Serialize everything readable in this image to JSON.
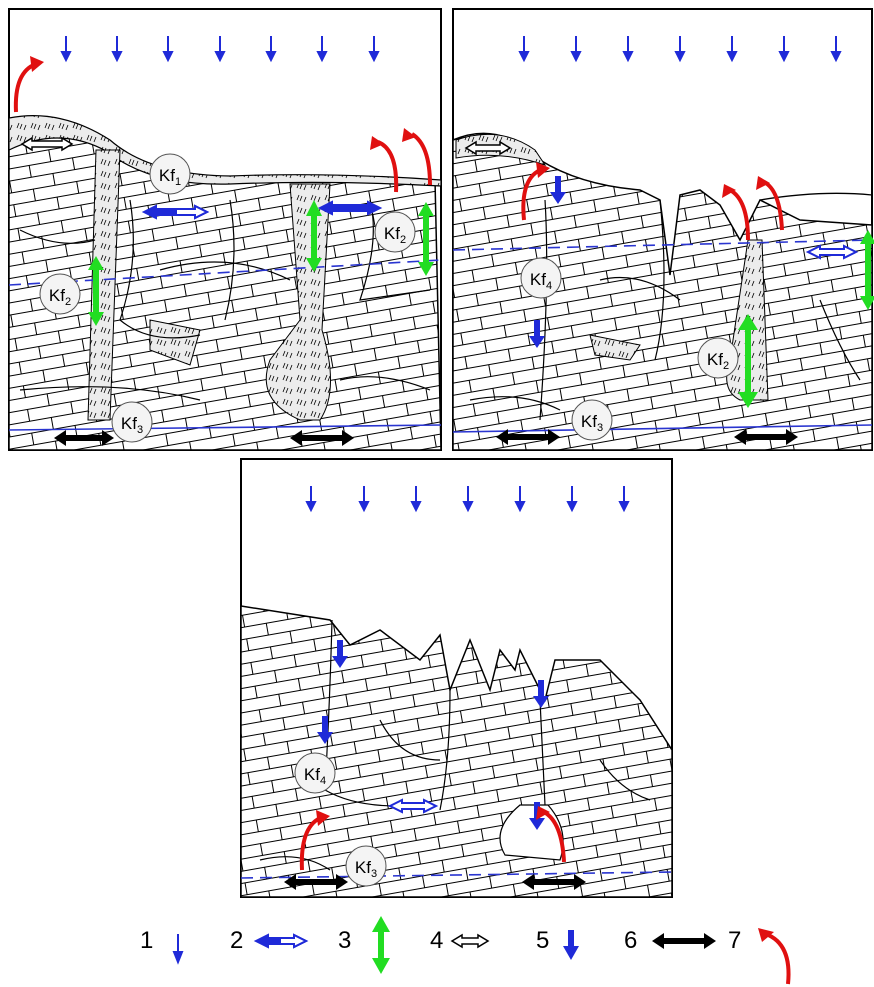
{
  "panels": {
    "top_left": {
      "labels": [
        {
          "base": "Kf",
          "sub": "1"
        },
        {
          "base": "Kf",
          "sub": "2"
        },
        {
          "base": "Kf",
          "sub": "2"
        },
        {
          "base": "Kf",
          "sub": "3"
        }
      ]
    },
    "top_right": {
      "labels": [
        {
          "base": "Kf",
          "sub": "4"
        },
        {
          "base": "Kf",
          "sub": "2"
        },
        {
          "base": "Kf",
          "sub": "3"
        }
      ]
    },
    "bottom": {
      "labels": [
        {
          "base": "Kf",
          "sub": "4"
        },
        {
          "base": "Kf",
          "sub": "3"
        }
      ]
    }
  },
  "legend": {
    "items": [
      {
        "num": "1",
        "symbol": "small-blue-down-arrow"
      },
      {
        "num": "2",
        "symbol": "blue-hollow-right-arrow"
      },
      {
        "num": "3",
        "symbol": "green-double-vertical-arrow"
      },
      {
        "num": "4",
        "symbol": "black-hollow-double-horizontal-arrow"
      },
      {
        "num": "5",
        "symbol": "blue-bold-down-arrow"
      },
      {
        "num": "6",
        "symbol": "black-double-horizontal-arrow"
      },
      {
        "num": "7",
        "symbol": "red-curved-arrow"
      }
    ]
  },
  "colors": {
    "blue": "#1f2ad8",
    "green": "#22dd22",
    "red": "#e01010",
    "black": "#000000",
    "water_table": "#2a35d0"
  }
}
